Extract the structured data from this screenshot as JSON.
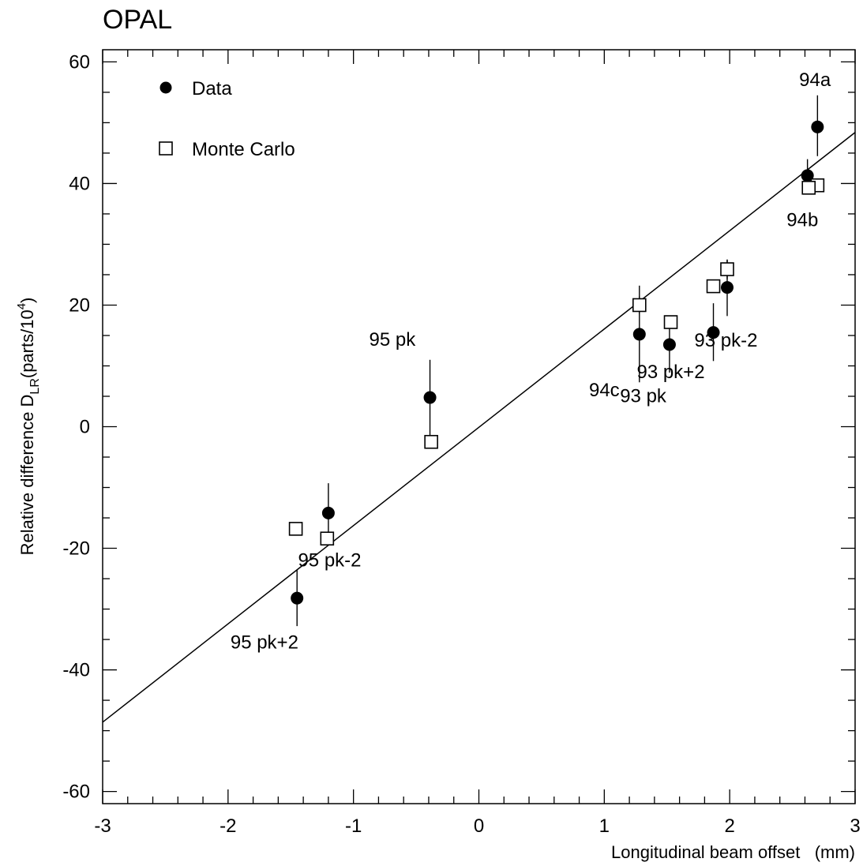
{
  "chart_data": {
    "type": "scatter",
    "title": "OPAL",
    "xlabel": "Longitudinal beam offset   (mm)",
    "ylabel": {
      "main": "Relative difference D",
      "sub": "LR",
      "unit_open": "(parts/10",
      "sup": "4",
      "unit_close": ")"
    },
    "xlim": [
      -3,
      3
    ],
    "ylim": [
      -62,
      62
    ],
    "x_ticks": [
      -3,
      -2,
      -1,
      0,
      1,
      2,
      3
    ],
    "y_ticks": [
      -60,
      -40,
      -20,
      0,
      20,
      40,
      60
    ],
    "x_tick_labels": [
      "-3",
      "-2",
      "-1",
      "0",
      "1",
      "2",
      "3"
    ],
    "y_tick_labels": [
      "-60",
      "-40",
      "-20",
      "0",
      "20",
      "40",
      "60"
    ],
    "grid": false,
    "legend_position": "top-left",
    "legend": [
      {
        "label": "Data",
        "marker": "filled-circle"
      },
      {
        "label": "Monte Carlo",
        "marker": "open-square"
      }
    ],
    "series": [
      {
        "name": "Data",
        "marker": "filled-circle",
        "points": [
          {
            "x": 2.7,
            "y": 49.3,
            "yerr_low": 44.5,
            "yerr_high": 54.5
          },
          {
            "x": 2.62,
            "y": 41.3,
            "yerr_low": 38.5,
            "yerr_high": 44.0
          },
          {
            "x": 1.98,
            "y": 22.9,
            "yerr_low": 18.2,
            "yerr_high": 27.4
          },
          {
            "x": 1.87,
            "y": 15.5,
            "yerr_low": 10.8,
            "yerr_high": 20.3
          },
          {
            "x": 1.52,
            "y": 13.5,
            "yerr_low": 8.9,
            "yerr_high": 18.0
          },
          {
            "x": 1.28,
            "y": 15.2,
            "yerr_low": 7.3,
            "yerr_high": 23.2
          },
          {
            "x": -0.39,
            "y": 4.8,
            "yerr_low": -1.5,
            "yerr_high": 11.0
          },
          {
            "x": -1.2,
            "y": -14.2,
            "yerr_low": -19.0,
            "yerr_high": -9.3
          },
          {
            "x": -1.45,
            "y": -28.2,
            "yerr_low": -32.8,
            "yerr_high": -23.5
          }
        ]
      },
      {
        "name": "Monte Carlo",
        "marker": "open-square",
        "points": [
          {
            "x": 2.7,
            "y": 39.7,
            "yerr_low": 38.7,
            "yerr_high": 40.7
          },
          {
            "x": 2.63,
            "y": 39.3,
            "yerr_low": 38.3,
            "yerr_high": 40.3
          },
          {
            "x": 1.98,
            "y": 25.9,
            "yerr_low": 24.3,
            "yerr_high": 27.5
          },
          {
            "x": 1.87,
            "y": 23.1,
            "yerr_low": 22.1,
            "yerr_high": 24.1
          },
          {
            "x": 1.53,
            "y": 17.2,
            "yerr_low": 16.2,
            "yerr_high": 18.2
          },
          {
            "x": 1.28,
            "y": 20.0,
            "yerr_low": 18.5,
            "yerr_high": 21.5
          },
          {
            "x": -0.38,
            "y": -2.5,
            "yerr_low": -3.5,
            "yerr_high": -1.5
          },
          {
            "x": -1.21,
            "y": -18.4,
            "yerr_low": -19.4,
            "yerr_high": -17.4
          },
          {
            "x": -1.46,
            "y": -16.8,
            "yerr_low": -17.8,
            "yerr_high": -15.8
          }
        ]
      }
    ],
    "fit_line": {
      "x": [
        -3,
        3
      ],
      "y": [
        -48.6,
        48.4
      ]
    },
    "annotations": [
      {
        "text": "94a",
        "x": 2.68,
        "y": 56.0
      },
      {
        "text": "94b",
        "x": 2.58,
        "y": 33.0
      },
      {
        "text": "93 pk-2",
        "x": 1.97,
        "y": 13.2
      },
      {
        "text": "93 pk+2",
        "x": 1.53,
        "y": 8.0
      },
      {
        "text": "93 pk",
        "x": 1.31,
        "y": 4.0
      },
      {
        "text": "94c",
        "x": 1.0,
        "y": 5.0
      },
      {
        "text": "95 pk",
        "x": -0.69,
        "y": 13.3
      },
      {
        "text": "95 pk-2",
        "x": -1.19,
        "y": -23.0
      },
      {
        "text": "95 pk+2",
        "x": -1.71,
        "y": -36.5
      }
    ]
  }
}
